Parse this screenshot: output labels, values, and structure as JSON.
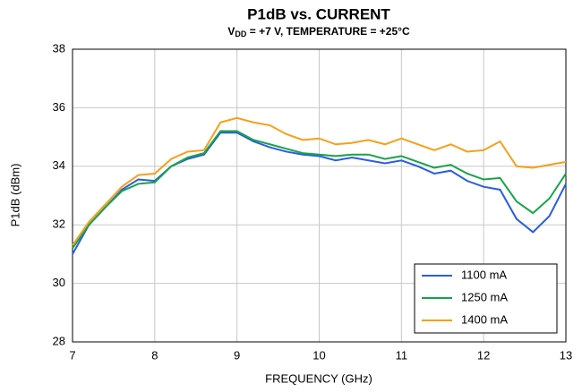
{
  "chart_data": {
    "type": "line",
    "title": "P1dB vs. CURRENT",
    "subtitle": [
      "V",
      "DD",
      " = +7 V, TEMPERATURE = +25°C"
    ],
    "xlabel": "FREQUENCY (GHz)",
    "ylabel": "P1dB (dBm)",
    "x": [
      7,
      7.2,
      7.4,
      7.6,
      7.8,
      8,
      8.2,
      8.4,
      8.6,
      8.8,
      9,
      9.2,
      9.4,
      9.6,
      9.8,
      10,
      10.2,
      10.4,
      10.6,
      10.8,
      11,
      11.2,
      11.4,
      11.6,
      11.8,
      12,
      12.2,
      12.4,
      12.6,
      12.8,
      13
    ],
    "series": [
      {
        "name": "1100 mA",
        "color": "#2a5de0",
        "values": [
          31.0,
          32.0,
          32.6,
          33.2,
          33.55,
          33.5,
          34.0,
          34.25,
          34.4,
          35.15,
          35.15,
          34.85,
          34.65,
          34.5,
          34.4,
          34.35,
          34.2,
          34.3,
          34.2,
          34.1,
          34.2,
          34.0,
          33.75,
          33.85,
          33.5,
          33.3,
          33.2,
          32.2,
          31.75,
          32.3,
          33.4
        ]
      },
      {
        "name": "1250 mA",
        "color": "#17a34a",
        "values": [
          31.2,
          32.0,
          32.6,
          33.15,
          33.4,
          33.45,
          34.0,
          34.3,
          34.45,
          35.2,
          35.2,
          34.9,
          34.75,
          34.6,
          34.45,
          34.4,
          34.35,
          34.4,
          34.4,
          34.25,
          34.35,
          34.15,
          33.95,
          34.05,
          33.75,
          33.55,
          33.6,
          32.8,
          32.4,
          32.9,
          33.75
        ]
      },
      {
        "name": "1400 mA",
        "color": "#f5a01a",
        "values": [
          31.3,
          32.1,
          32.7,
          33.3,
          33.7,
          33.75,
          34.25,
          34.5,
          34.55,
          35.5,
          35.65,
          35.5,
          35.4,
          35.1,
          34.9,
          34.95,
          34.75,
          34.8,
          34.9,
          34.75,
          34.95,
          34.75,
          34.55,
          34.75,
          34.5,
          34.55,
          34.85,
          34.0,
          33.95,
          34.05,
          34.15
        ]
      }
    ],
    "xlim": [
      7,
      13
    ],
    "xticks": [
      7,
      8,
      9,
      10,
      11,
      12,
      13
    ],
    "ylim": [
      28,
      38
    ],
    "yticks": [
      28,
      30,
      32,
      34,
      36,
      38
    ],
    "grid": true,
    "legend": "lower right"
  }
}
